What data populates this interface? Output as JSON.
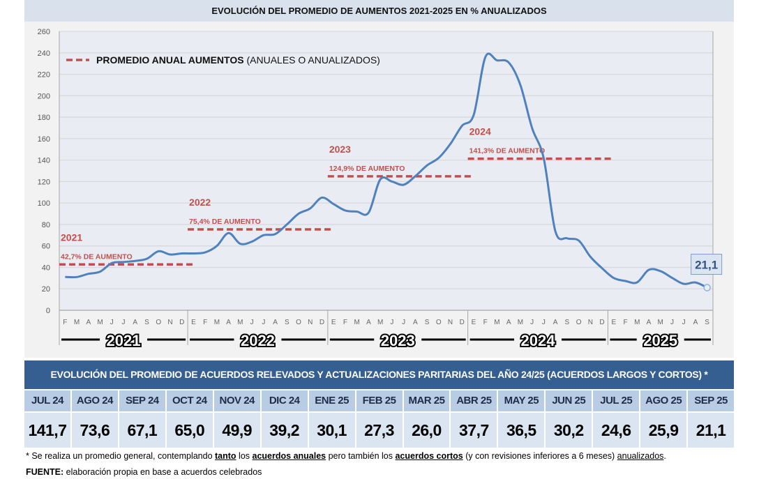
{
  "chart_data": {
    "type": "line",
    "title": "EVOLUCIÓN DEL PROMEDIO DE AUMENTOS 2021-2025 EN % ANUALIZADOS",
    "ylim": [
      0,
      260
    ],
    "yticks": [
      0,
      20,
      40,
      60,
      80,
      100,
      120,
      140,
      160,
      180,
      200,
      220,
      240,
      260
    ],
    "grid": true,
    "years": [
      {
        "label": "2021",
        "months": [
          "F",
          "M",
          "A",
          "M",
          "J",
          "J",
          "A",
          "S",
          "O",
          "N",
          "D"
        ]
      },
      {
        "label": "2022",
        "months": [
          "E",
          "F",
          "M",
          "A",
          "M",
          "J",
          "J",
          "A",
          "S",
          "O",
          "N",
          "D"
        ]
      },
      {
        "label": "2023",
        "months": [
          "E",
          "F",
          "M",
          "A",
          "M",
          "J",
          "J",
          "A",
          "S",
          "O",
          "N",
          "D"
        ]
      },
      {
        "label": "2024",
        "months": [
          "E",
          "F",
          "M",
          "A",
          "M",
          "J",
          "J",
          "A",
          "S",
          "O",
          "N",
          "D"
        ]
      },
      {
        "label": "2025",
        "months": [
          "E",
          "F",
          "M",
          "A",
          "M",
          "J",
          "J",
          "A",
          "S"
        ]
      }
    ],
    "series": [
      {
        "color": "#4f81bd",
        "values": [
          31,
          31,
          34,
          36,
          44,
          45,
          46,
          48,
          55,
          52,
          53,
          53,
          54,
          60,
          72,
          62,
          64,
          70,
          71,
          80,
          90,
          95,
          105,
          99,
          93,
          92,
          91,
          122,
          120,
          117,
          125,
          135,
          142,
          155,
          172,
          182,
          236,
          233,
          231,
          210,
          170,
          141.7,
          73.6,
          67.1,
          65.0,
          49.9,
          39.2,
          30.1,
          27.3,
          26.0,
          37.7,
          36.5,
          30.2,
          24.6,
          25.9,
          21.1
        ]
      }
    ],
    "last_label": "21,1",
    "legend": {
      "bold": "PROMEDIO ANUAL AUMENTOS",
      "rest": " (ANUALES O ANUALIZADOS)",
      "color": "#c0504d",
      "placement": "top-left"
    },
    "annual_averages": [
      {
        "year": "2021",
        "value": 42.7,
        "label": "42,7% DE AUMENTO"
      },
      {
        "year": "2022",
        "value": 75.4,
        "label": "75,4% DE AUMENTO"
      },
      {
        "year": "2023",
        "value": 124.9,
        "label": "124,9% DE AUMENTO"
      },
      {
        "year": "2024",
        "value": 141.3,
        "label": "141,3% DE AUMENTO"
      }
    ]
  },
  "table": {
    "title": "EVOLUCIÓN DEL PROMEDIO DE ACUERDOS RELEVADOS Y ACTUALIZACIONES PARITARIAS DEL AÑO 24/25 (ACUERDOS LARGOS Y CORTOS) *",
    "months": [
      "JUL 24",
      "AGO 24",
      "SEP 24",
      "OCT 24",
      "NOV 24",
      "DIC 24",
      "ENE 25",
      "FEB 25",
      "MAR 25",
      "ABR 25",
      "MAY 25",
      "JUN 25",
      "JUL 25",
      "AGO 25",
      "SEP 25"
    ],
    "values": [
      "141,7",
      "73,6",
      "67,1",
      "65,0",
      "49,9",
      "39,2",
      "30,1",
      "27,3",
      "26,0",
      "37,7",
      "36,5",
      "30,2",
      "24,6",
      "25,9",
      "21,1"
    ]
  },
  "note": {
    "p1": "* Se realiza un promedio general, contemplando ",
    "u1": "tanto",
    "p2": " los ",
    "u2": "acuerdos anuales",
    "p3": " pero también los ",
    "u3": "acuerdos cortos",
    "p4": " (y con revisiones inferiores a 6 meses) ",
    "u4": "anualizados",
    "p5": "."
  },
  "source": {
    "label": "FUENTE:",
    "text": " elaboración propia en base a acuerdos celebrados"
  }
}
